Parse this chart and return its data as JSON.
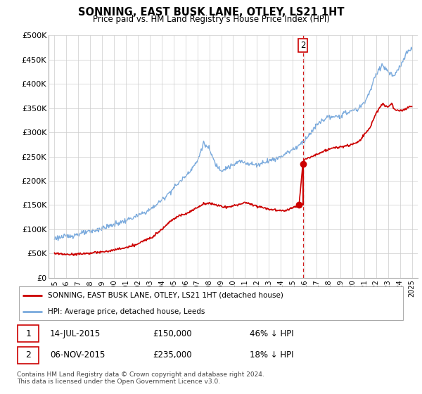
{
  "title": "SONNING, EAST BUSK LANE, OTLEY, LS21 1HT",
  "subtitle": "Price paid vs. HM Land Registry's House Price Index (HPI)",
  "ylim": [
    0,
    500000
  ],
  "yticks": [
    0,
    50000,
    100000,
    150000,
    200000,
    250000,
    300000,
    350000,
    400000,
    450000,
    500000
  ],
  "ytick_labels": [
    "£0",
    "£50K",
    "£100K",
    "£150K",
    "£200K",
    "£250K",
    "£300K",
    "£350K",
    "£400K",
    "£450K",
    "£500K"
  ],
  "sale1_date": "14-JUL-2015",
  "sale1_price": 150000,
  "sale1_pct": "46% ↓ HPI",
  "sale2_date": "06-NOV-2015",
  "sale2_price": 235000,
  "sale2_pct": "18% ↓ HPI",
  "sale1_x": 2015.53,
  "sale2_x": 2015.85,
  "vline_x": 2015.85,
  "legend1_label": "SONNING, EAST BUSK LANE, OTLEY, LS21 1HT (detached house)",
  "legend2_label": "HPI: Average price, detached house, Leeds",
  "footer": "Contains HM Land Registry data © Crown copyright and database right 2024.\nThis data is licensed under the Open Government Licence v3.0.",
  "red_color": "#cc0000",
  "blue_color": "#7aaadd",
  "grid_color": "#cccccc",
  "bg_color": "#ffffff",
  "hpi_anchors_x": [
    1995.0,
    1996.0,
    1997.0,
    1998.0,
    1999.0,
    2000.0,
    2001.0,
    2002.0,
    2003.0,
    2004.0,
    2005.0,
    2006.0,
    2007.0,
    2007.5,
    2008.0,
    2008.5,
    2009.0,
    2009.5,
    2010.0,
    2010.5,
    2011.0,
    2011.5,
    2012.0,
    2012.5,
    2013.0,
    2013.5,
    2014.0,
    2014.5,
    2015.0,
    2015.5,
    2016.0,
    2016.5,
    2017.0,
    2017.5,
    2018.0,
    2018.5,
    2019.0,
    2019.5,
    2020.0,
    2020.5,
    2021.0,
    2021.5,
    2022.0,
    2022.5,
    2023.0,
    2023.5,
    2024.0,
    2024.5,
    2025.0
  ],
  "hpi_anchors_y": [
    82000,
    85000,
    90000,
    95000,
    102000,
    110000,
    118000,
    128000,
    140000,
    160000,
    185000,
    210000,
    240000,
    278000,
    265000,
    235000,
    222000,
    228000,
    232000,
    240000,
    238000,
    235000,
    232000,
    238000,
    242000,
    245000,
    250000,
    258000,
    265000,
    272000,
    285000,
    298000,
    315000,
    325000,
    332000,
    330000,
    335000,
    340000,
    345000,
    348000,
    362000,
    385000,
    420000,
    440000,
    425000,
    415000,
    435000,
    460000,
    475000
  ],
  "red_anchors_x": [
    1995.0,
    1995.5,
    1996.0,
    1996.5,
    1997.0,
    1997.5,
    1998.0,
    1998.5,
    1999.0,
    1999.5,
    2000.0,
    2000.5,
    2001.0,
    2001.5,
    2002.0,
    2002.5,
    2003.0,
    2003.5,
    2004.0,
    2004.5,
    2005.0,
    2005.5,
    2006.0,
    2006.5,
    2007.0,
    2007.5,
    2008.0,
    2008.5,
    2009.0,
    2009.5,
    2010.0,
    2010.5,
    2011.0,
    2011.5,
    2012.0,
    2012.5,
    2013.0,
    2013.5,
    2014.0,
    2014.5,
    2015.0,
    2015.53,
    2015.85,
    2016.0,
    2016.5,
    2017.0,
    2017.5,
    2018.0,
    2018.5,
    2019.0,
    2019.5,
    2020.0,
    2020.5,
    2021.0,
    2021.5,
    2022.0,
    2022.5,
    2023.0,
    2023.3,
    2023.5,
    2024.0,
    2024.5,
    2025.0
  ],
  "red_anchors_y": [
    50000,
    49000,
    48000,
    48500,
    49000,
    50000,
    51000,
    52000,
    53000,
    55000,
    57000,
    60000,
    62000,
    65000,
    70000,
    76000,
    82000,
    90000,
    100000,
    112000,
    122000,
    128000,
    132000,
    138000,
    145000,
    152000,
    155000,
    150000,
    148000,
    145000,
    148000,
    152000,
    155000,
    152000,
    148000,
    145000,
    142000,
    140000,
    138000,
    140000,
    145000,
    150000,
    235000,
    245000,
    248000,
    255000,
    260000,
    265000,
    268000,
    270000,
    272000,
    275000,
    280000,
    295000,
    310000,
    340000,
    358000,
    352000,
    360000,
    348000,
    345000,
    348000,
    355000
  ]
}
